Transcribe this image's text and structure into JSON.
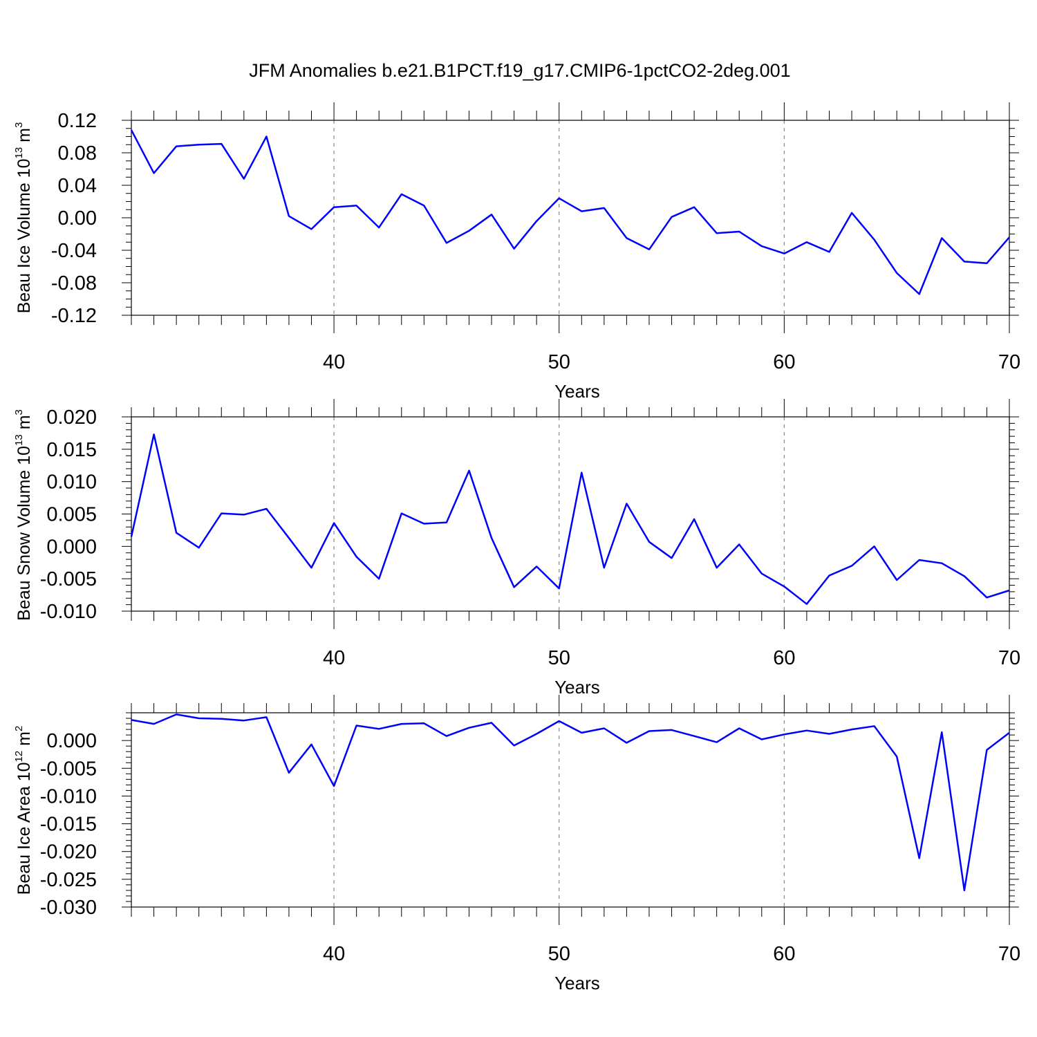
{
  "title": "JFM Anomalies b.e21.B1PCT.f19_g17.CMIP6-1pctCO2-2deg.001",
  "chart_data": [
    {
      "type": "line",
      "ylabel": "Beau Ice Volume 10",
      "ylabel_exp": "13",
      "ylabel_unit": " m",
      "ylabel_unit_exp": "3",
      "xlabel": "Years",
      "xlim": [
        31,
        70
      ],
      "ylim": [
        -0.12,
        0.12
      ],
      "xticks": [
        40,
        50,
        60,
        70
      ],
      "xtick_labels": [
        "40",
        "50",
        "60",
        "70"
      ],
      "yticks": [
        -0.12,
        -0.08,
        -0.04,
        0.0,
        0.04,
        0.08,
        0.12
      ],
      "ytick_labels": [
        "-0.12",
        "-0.08",
        "-0.04",
        "0.00",
        "0.04",
        "0.08",
        "0.12"
      ],
      "grid": "vertical dashed at major x ticks",
      "color": "#0000ff",
      "x": [
        31,
        32,
        33,
        34,
        35,
        36,
        37,
        38,
        39,
        40,
        41,
        42,
        43,
        44,
        45,
        46,
        47,
        48,
        49,
        50,
        51,
        52,
        53,
        54,
        55,
        56,
        57,
        58,
        59,
        60,
        61,
        62,
        63,
        64,
        65,
        66,
        67,
        68,
        69,
        70
      ],
      "values": [
        0.108,
        0.055,
        0.088,
        0.09,
        0.091,
        0.048,
        0.1,
        0.002,
        -0.014,
        0.013,
        0.015,
        -0.012,
        0.029,
        0.015,
        -0.031,
        -0.016,
        0.004,
        -0.038,
        -0.004,
        0.024,
        0.008,
        0.012,
        -0.025,
        -0.039,
        0.001,
        0.013,
        -0.019,
        -0.017,
        -0.035,
        -0.044,
        -0.03,
        -0.042,
        0.006,
        -0.027,
        -0.068,
        -0.094,
        -0.025,
        -0.054,
        -0.056,
        -0.024
      ]
    },
    {
      "type": "line",
      "ylabel": "Beau Snow Volume 10",
      "ylabel_exp": "13",
      "ylabel_unit": " m",
      "ylabel_unit_exp": "3",
      "xlabel": "Years",
      "xlim": [
        31,
        70
      ],
      "ylim": [
        -0.01,
        0.02
      ],
      "xticks": [
        40,
        50,
        60,
        70
      ],
      "xtick_labels": [
        "40",
        "50",
        "60",
        "70"
      ],
      "yticks": [
        -0.01,
        -0.005,
        0.0,
        0.005,
        0.01,
        0.015,
        0.02
      ],
      "ytick_labels": [
        "-0.010",
        "-0.005",
        "0.000",
        "0.005",
        "0.010",
        "0.015",
        "0.020"
      ],
      "grid": "vertical dashed at major x ticks",
      "color": "#0000ff",
      "x": [
        31,
        32,
        33,
        34,
        35,
        36,
        37,
        38,
        39,
        40,
        41,
        42,
        43,
        44,
        45,
        46,
        47,
        48,
        49,
        50,
        51,
        52,
        53,
        54,
        55,
        56,
        57,
        58,
        59,
        60,
        61,
        62,
        63,
        64,
        65,
        66,
        67,
        68,
        69,
        70
      ],
      "values": [
        0.0015,
        0.0173,
        0.0021,
        -0.0002,
        0.0051,
        0.0049,
        0.0058,
        0.0013,
        -0.0033,
        0.0036,
        -0.0016,
        -0.005,
        0.0051,
        0.0035,
        0.0037,
        0.0117,
        0.0013,
        -0.0063,
        -0.0031,
        -0.0065,
        0.0114,
        -0.0033,
        0.0066,
        0.0007,
        -0.0018,
        0.0042,
        -0.0033,
        0.0003,
        -0.0042,
        -0.0062,
        -0.0089,
        -0.0045,
        -0.003,
        0.0,
        -0.0052,
        -0.0021,
        -0.0026,
        -0.0046,
        -0.0079,
        -0.0068
      ]
    },
    {
      "type": "line",
      "ylabel": "Beau Ice Area 10",
      "ylabel_exp": "12",
      "ylabel_unit": " m",
      "ylabel_unit_exp": "2",
      "xlabel": "Years",
      "xlim": [
        31,
        70
      ],
      "ylim": [
        -0.03,
        0.005
      ],
      "xticks": [
        40,
        50,
        60,
        70
      ],
      "xtick_labels": [
        "40",
        "50",
        "60",
        "70"
      ],
      "yticks": [
        -0.03,
        -0.025,
        -0.02,
        -0.015,
        -0.01,
        -0.005,
        0.0
      ],
      "ytick_labels": [
        "-0.030",
        "-0.025",
        "-0.020",
        "-0.015",
        "-0.010",
        "-0.005",
        "0.000"
      ],
      "grid": "vertical dashed at major x ticks",
      "color": "#0000ff",
      "x": [
        31,
        32,
        33,
        34,
        35,
        36,
        37,
        38,
        39,
        40,
        41,
        42,
        43,
        44,
        45,
        46,
        47,
        48,
        49,
        50,
        51,
        52,
        53,
        54,
        55,
        56,
        57,
        58,
        59,
        60,
        61,
        62,
        63,
        64,
        65,
        66,
        67,
        68,
        69,
        70
      ],
      "values": [
        0.0037,
        0.003,
        0.0047,
        0.004,
        0.0039,
        0.0036,
        0.0042,
        -0.0058,
        -0.0007,
        -0.0082,
        0.0027,
        0.0021,
        0.003,
        0.0031,
        0.0008,
        0.0023,
        0.0032,
        -0.0009,
        0.0012,
        0.0035,
        0.0014,
        0.0022,
        -0.0004,
        0.0017,
        0.0019,
        0.0008,
        -0.0003,
        0.0022,
        0.0002,
        0.0011,
        0.0018,
        0.0012,
        0.002,
        0.0026,
        -0.0029,
        -0.0212,
        0.0015,
        -0.027,
        -0.0017,
        0.0014
      ]
    }
  ]
}
